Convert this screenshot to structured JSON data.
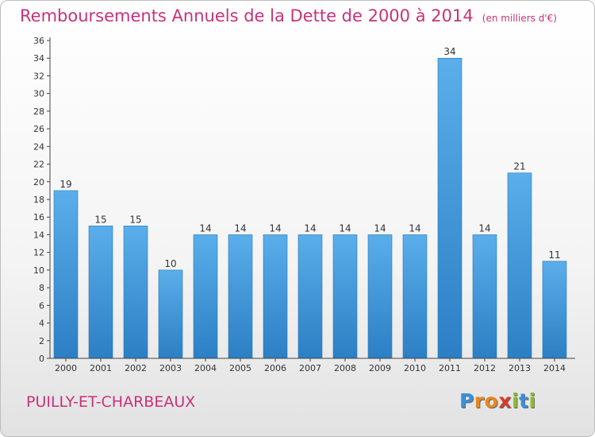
{
  "header": {
    "title": "Remboursements Annuels de la Dette de 2000 à 2014",
    "unit": "(en milliers d'€)"
  },
  "footer": {
    "commune": "PUILLY-ET-CHARBEAUX",
    "brand_letters": [
      "P",
      "r",
      "o",
      "x",
      "i",
      "t",
      "i"
    ],
    "brand_colors": [
      "#3a8fd8",
      "#e8871e",
      "#e8871e",
      "#d93a2a",
      "#8bbf2a",
      "#3a8fd8",
      "#8bbf2a"
    ]
  },
  "colors": {
    "title": "#c8327a",
    "bar_top": "#5aaeea",
    "bar_bottom": "#2c7fc4",
    "axis": "#444444"
  },
  "chart_data": {
    "type": "bar",
    "title": "Remboursements Annuels de la Dette de 2000 à 2014",
    "unit": "(en milliers d'€)",
    "categories": [
      "2000",
      "2001",
      "2002",
      "2003",
      "2004",
      "2005",
      "2006",
      "2007",
      "2008",
      "2009",
      "2010",
      "2011",
      "2012",
      "2013",
      "2014"
    ],
    "values": [
      19,
      15,
      15,
      10,
      14,
      14,
      14,
      14,
      14,
      14,
      14,
      34,
      14,
      21,
      11
    ],
    "ylim": [
      0,
      36
    ],
    "ytick_step": 2,
    "grid": false
  }
}
